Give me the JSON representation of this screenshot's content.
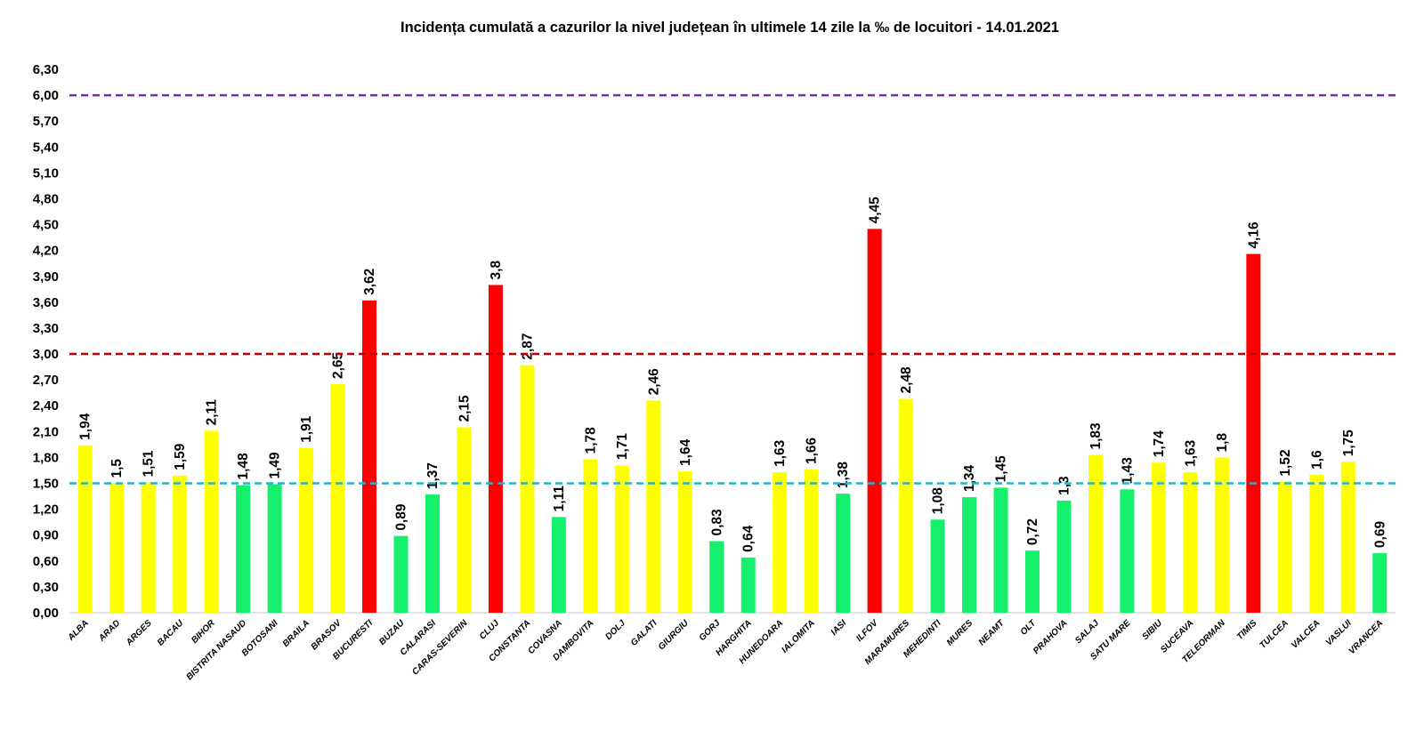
{
  "chart_data": {
    "type": "bar",
    "title": "Incidența cumulată a cazurilor la nivel județean în ultimele 14 zile   la ‰ de locuitori  - 14.01.2021",
    "xlabel": "",
    "ylabel": "",
    "ylim": [
      0,
      6.3
    ],
    "yticks": [
      "0,00",
      "0,30",
      "0,60",
      "0,90",
      "1,20",
      "1,50",
      "1,80",
      "2,10",
      "2,40",
      "2,70",
      "3,00",
      "3,30",
      "3,60",
      "3,90",
      "4,20",
      "4,50",
      "4,80",
      "5,10",
      "5,40",
      "5,70",
      "6,00",
      "6,30"
    ],
    "grid": false,
    "categories": [
      "ALBA",
      "ARAD",
      "ARGES",
      "BACAU",
      "BIHOR",
      "BISTRITA NASAUD",
      "BOTOSANI",
      "BRAILA",
      "BRASOV",
      "BUCURESTI",
      "BUZAU",
      "CALARASI",
      "CARAS-SEVERIN",
      "CLUJ",
      "CONSTANTA",
      "COVASNA",
      "DAMBOVITA",
      "DOLJ",
      "GALATI",
      "GIURGIU",
      "GORJ",
      "HARGHITA",
      "HUNEDOARA",
      "IALOMITA",
      "IASI",
      "ILFOV",
      "MARAMURES",
      "MEHEDINTI",
      "MURES",
      "NEAMT",
      "OLT",
      "PRAHOVA",
      "SALAJ",
      "SATU MARE",
      "SIBIU",
      "SUCEAVA",
      "TELEORMAN",
      "TIMIS",
      "TULCEA",
      "VALCEA",
      "VASLUI",
      "VRANCEA"
    ],
    "values": [
      1.94,
      1.5,
      1.51,
      1.59,
      2.11,
      1.48,
      1.49,
      1.91,
      2.65,
      3.62,
      0.89,
      1.37,
      2.15,
      3.8,
      2.87,
      1.11,
      1.78,
      1.71,
      2.46,
      1.64,
      0.83,
      0.64,
      1.63,
      1.66,
      1.38,
      4.45,
      2.48,
      1.08,
      1.34,
      1.45,
      0.72,
      1.3,
      1.83,
      1.43,
      1.74,
      1.63,
      1.8,
      4.16,
      1.52,
      1.6,
      1.75,
      0.69
    ],
    "data_labels": [
      "1,94",
      "1,5",
      "1,51",
      "1,59",
      "2,11",
      "1,48",
      "1,49",
      "1,91",
      "2,65",
      "3,62",
      "0,89",
      "1,37",
      "2,15",
      "3,8",
      "2,87",
      "1,11",
      "1,78",
      "1,71",
      "2,46",
      "1,64",
      "0,83",
      "0,64",
      "1,63",
      "1,66",
      "1,38",
      "4,45",
      "2,48",
      "1,08",
      "1,34",
      "1,45",
      "0,72",
      "1,3",
      "1,83",
      "1,43",
      "1,74",
      "1,63",
      "1,8",
      "4,16",
      "1,52",
      "1,6",
      "1,75",
      "0,69"
    ],
    "bar_colors": {
      "high": "#FF0000",
      "medium": "#FFFF00",
      "low": "#14F06C"
    },
    "thresholds": [
      {
        "value": 6.0,
        "color": "#7030A0",
        "style": "dashed"
      },
      {
        "value": 3.0,
        "color": "#C00000",
        "style": "dashed"
      },
      {
        "value": 1.5,
        "color": "#1EB4D2",
        "style": "dashed"
      }
    ]
  }
}
